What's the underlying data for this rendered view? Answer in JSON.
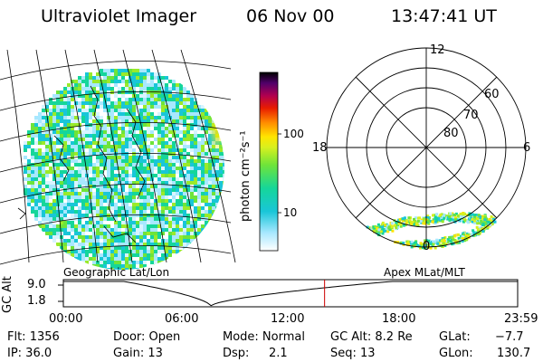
{
  "header": {
    "instrument": "Ultraviolet Imager",
    "date": "06 Nov 00",
    "time": "13:47:41 UT"
  },
  "colorbar": {
    "unit_label": "photon cm⁻²s⁻¹",
    "ticks": [
      "100",
      "10"
    ],
    "scale": "log"
  },
  "left_map": {
    "label": "Geographic Lat/Lon"
  },
  "polar_plot": {
    "label": "Apex MLat/MLT",
    "mlt_labels": {
      "top": "12",
      "left": "18",
      "right": "6",
      "bottom": "0"
    },
    "lat_labels": [
      "60",
      "70",
      "80"
    ]
  },
  "altitude_plot": {
    "ylabel": "GC Alt",
    "yticks": [
      "9.0",
      "1.8"
    ],
    "xticks": [
      "00:00",
      "06:00",
      "12:00",
      "18:00",
      "23:59"
    ],
    "current_time_fraction": 0.575
  },
  "status": {
    "flt": "Flt: 1356",
    "ip": "IP: 36.0",
    "door": "Door: Open",
    "gain": "Gain: 13",
    "mode": "Mode: Normal",
    "dsp_label": "Dsp:",
    "dsp_value": "2.1",
    "gc_alt": "GC Alt: 8.2 Re",
    "seq": "Seq: 13",
    "glat_label": "GLat:",
    "glat_value": "−7.7",
    "glon_label": "GLon:",
    "glon_value": "130.7"
  },
  "colors": {
    "current_time_marker": "#cc0000"
  }
}
